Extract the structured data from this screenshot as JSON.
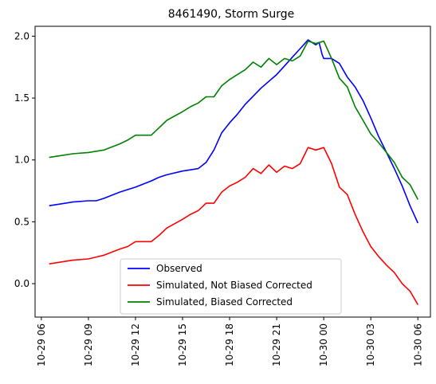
{
  "chart_data": {
    "type": "line",
    "title": "8461490, Storm Surge",
    "xlabel": "",
    "ylabel": "",
    "xlim": [
      -0.4,
      24.8
    ],
    "ylim": [
      -0.27,
      2.08
    ],
    "grid": false,
    "legend_position": "lower-center",
    "xticks": [
      {
        "value": 0,
        "label": "10-29 06"
      },
      {
        "value": 3,
        "label": "10-29 09"
      },
      {
        "value": 6,
        "label": "10-29 12"
      },
      {
        "value": 9,
        "label": "10-29 15"
      },
      {
        "value": 12,
        "label": "10-29 18"
      },
      {
        "value": 15,
        "label": "10-29 21"
      },
      {
        "value": 18,
        "label": "10-30 00"
      },
      {
        "value": 21,
        "label": "10-30 03"
      },
      {
        "value": 24,
        "label": "10-30 06"
      }
    ],
    "yticks": [
      {
        "value": 0.0,
        "label": "0.0"
      },
      {
        "value": 0.5,
        "label": "0.5"
      },
      {
        "value": 1.0,
        "label": "1.0"
      },
      {
        "value": 1.5,
        "label": "1.5"
      },
      {
        "value": 2.0,
        "label": "2.0"
      }
    ],
    "series": [
      {
        "name": "Observed",
        "color": "#0000ff",
        "x": [
          0.5,
          1,
          2,
          3,
          3.5,
          4,
          5,
          5.5,
          6,
          7,
          7.5,
          8,
          9,
          9.5,
          10,
          10.5,
          11,
          11.5,
          12,
          12.5,
          13,
          14,
          15,
          15.5,
          16,
          16.5,
          17,
          17.5,
          17.7,
          17.9,
          18,
          18.5,
          19,
          19.5,
          20,
          20.5,
          21,
          21.5,
          22,
          22.5,
          23,
          23.5,
          24
        ],
        "y": [
          0.63,
          0.64,
          0.66,
          0.67,
          0.67,
          0.69,
          0.74,
          0.76,
          0.78,
          0.83,
          0.86,
          0.88,
          0.91,
          0.92,
          0.93,
          0.98,
          1.08,
          1.22,
          1.3,
          1.37,
          1.45,
          1.58,
          1.69,
          1.76,
          1.83,
          1.9,
          1.97,
          1.93,
          1.95,
          1.85,
          1.82,
          1.82,
          1.78,
          1.67,
          1.59,
          1.48,
          1.34,
          1.19,
          1.06,
          0.93,
          0.79,
          0.63,
          0.49
        ]
      },
      {
        "name": "Simulated, Not Biased Corrected",
        "color": "#ff0000",
        "x": [
          0.5,
          1,
          2,
          3,
          4,
          5,
          5.5,
          6,
          7,
          7.5,
          8,
          9,
          9.5,
          10,
          10.5,
          11,
          11.5,
          12,
          12.5,
          13,
          13.5,
          14,
          14.5,
          15,
          15.5,
          16,
          16.5,
          17,
          17.5,
          18,
          18.5,
          19,
          19.5,
          20,
          20.5,
          21,
          21.5,
          22,
          22.5,
          23,
          23.5,
          24
        ],
        "y": [
          0.16,
          0.17,
          0.19,
          0.2,
          0.23,
          0.28,
          0.3,
          0.34,
          0.34,
          0.39,
          0.45,
          0.52,
          0.56,
          0.59,
          0.65,
          0.65,
          0.74,
          0.79,
          0.82,
          0.86,
          0.93,
          0.89,
          0.96,
          0.9,
          0.95,
          0.93,
          0.97,
          1.1,
          1.08,
          1.1,
          0.97,
          0.78,
          0.72,
          0.56,
          0.42,
          0.3,
          0.22,
          0.15,
          0.09,
          0.0,
          -0.06,
          -0.17
        ]
      },
      {
        "name": "Simulated, Biased Corrected",
        "color": "#008000",
        "x": [
          0.5,
          1,
          2,
          3,
          4,
          5,
          5.5,
          6,
          7,
          7.5,
          8,
          9,
          9.5,
          10,
          10.5,
          11,
          11.5,
          12,
          12.5,
          13,
          13.5,
          14,
          14.5,
          15,
          15.5,
          16,
          16.5,
          17,
          17.5,
          18,
          18.5,
          19,
          19.5,
          20,
          20.5,
          21,
          21.5,
          22,
          22.5,
          23,
          23.5,
          24
        ],
        "y": [
          1.02,
          1.03,
          1.05,
          1.06,
          1.08,
          1.13,
          1.16,
          1.2,
          1.2,
          1.26,
          1.32,
          1.39,
          1.43,
          1.46,
          1.51,
          1.51,
          1.6,
          1.65,
          1.69,
          1.73,
          1.79,
          1.75,
          1.82,
          1.77,
          1.82,
          1.8,
          1.84,
          1.96,
          1.94,
          1.96,
          1.82,
          1.66,
          1.59,
          1.43,
          1.32,
          1.21,
          1.14,
          1.06,
          0.98,
          0.86,
          0.8,
          0.68
        ]
      }
    ]
  }
}
